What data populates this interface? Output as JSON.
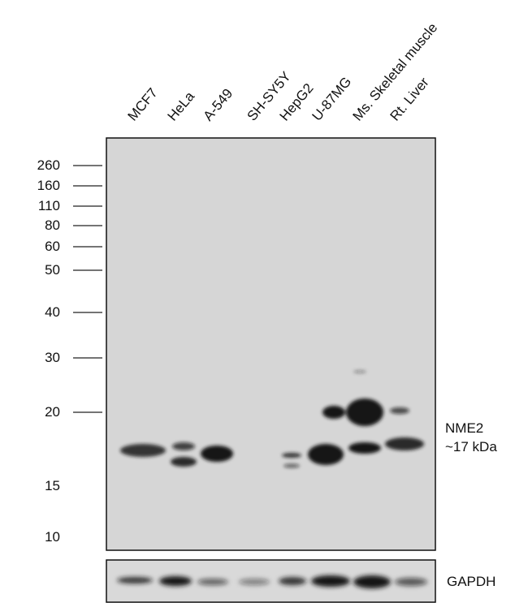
{
  "lanes": [
    "MCF7",
    "HeLa",
    "A-549",
    "SH-SY5Y",
    "HepG2",
    "U-87MG",
    "Ms. Skeletal muscle",
    "Rt. Liver"
  ],
  "markers": [
    260,
    160,
    110,
    80,
    60,
    50,
    40,
    30,
    20,
    15,
    10
  ],
  "target": {
    "name": "NME2",
    "size": "~17 kDa"
  },
  "loading_control": "GAPDH"
}
